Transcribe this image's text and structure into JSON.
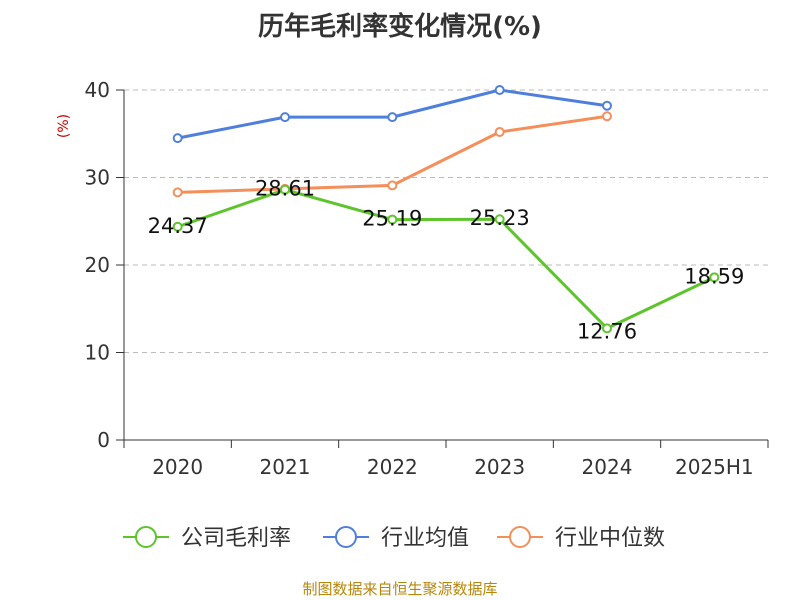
{
  "chart_data": {
    "type": "line",
    "title": "历年毛利率变化情况(%)",
    "ylabel": "(%)",
    "categories": [
      "2020",
      "2021",
      "2022",
      "2023",
      "2024",
      "2025H1"
    ],
    "ylim": [
      0,
      40
    ],
    "yticks": [
      "0",
      "10",
      "20",
      "30",
      "40"
    ],
    "grid": true,
    "legend_position": "bottom",
    "series": [
      {
        "name": "公司毛利率",
        "color": "#5ec42c",
        "values": [
          24.37,
          28.61,
          25.19,
          25.23,
          12.76,
          18.59
        ],
        "labels": [
          "24.37",
          "28.61",
          "25.19",
          "25.23",
          "12.76",
          "18.59"
        ]
      },
      {
        "name": "行业均值",
        "color": "#4f7fdc",
        "values": [
          34.5,
          36.9,
          36.9,
          40.0,
          38.2,
          null
        ]
      },
      {
        "name": "行业中位数",
        "color": "#f58f5a",
        "values": [
          28.3,
          28.7,
          29.1,
          35.2,
          37.0,
          null
        ]
      }
    ],
    "source": "制图数据来自恒生聚源数据库"
  }
}
